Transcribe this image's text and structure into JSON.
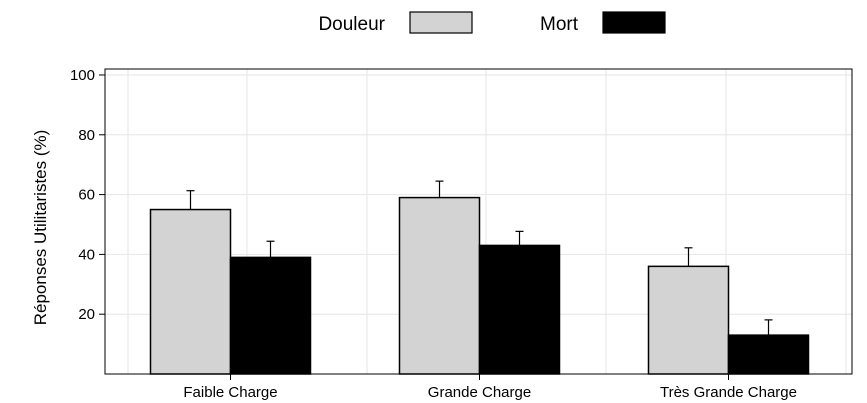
{
  "chart_data": {
    "type": "bar",
    "title": "",
    "xlabel": "",
    "ylabel": "Réponses Utilitaristes (%)",
    "categories": [
      "Faible Charge",
      "Grande Charge",
      "Très Grande Charge"
    ],
    "series": [
      {
        "name": "Douleur",
        "color": "#d3d3d3",
        "values": [
          55,
          59,
          36
        ],
        "error": [
          6.3,
          5.5,
          6.2
        ]
      },
      {
        "name": "Mort",
        "color": "#000000",
        "values": [
          39,
          43,
          13
        ],
        "error": [
          5.4,
          4.7,
          5.1
        ]
      }
    ],
    "ylim": [
      0,
      102
    ],
    "yticks": [
      20,
      40,
      60,
      80,
      100
    ],
    "grid": true,
    "legend_position": "top-center"
  }
}
